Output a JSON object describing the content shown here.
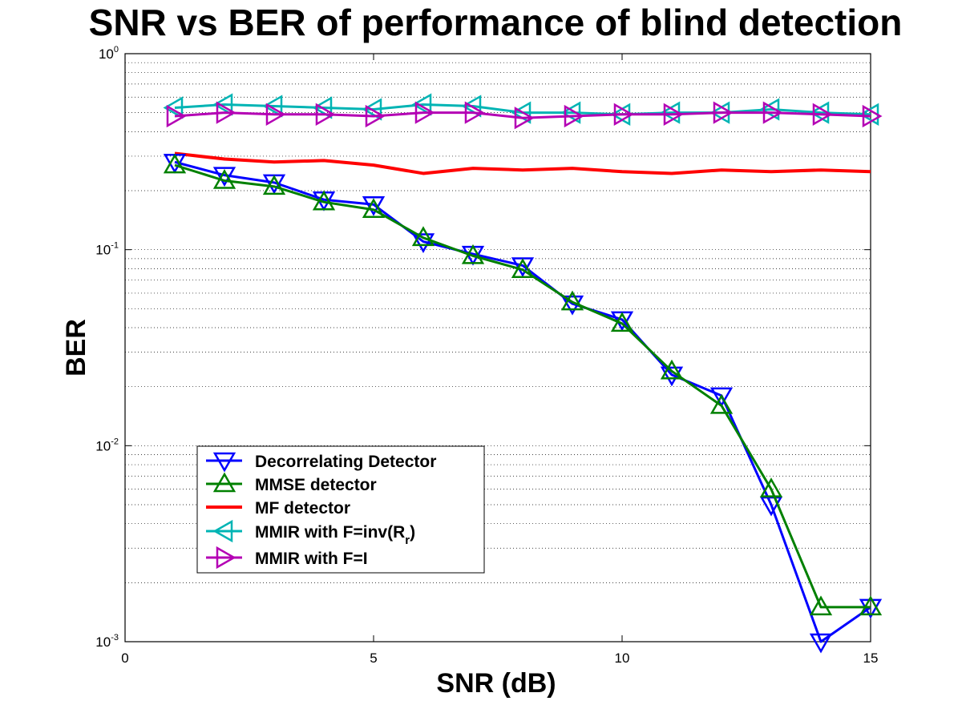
{
  "chart_data": {
    "type": "line",
    "title": "SNR vs BER of performance of blind detection",
    "xlabel": "SNR (dB)",
    "ylabel": "BER",
    "xlim": [
      0,
      15
    ],
    "ylim": [
      0.001,
      1
    ],
    "yscale": "log",
    "grid": "y-minor-dotted",
    "legend_position": "lower-left",
    "x_ticks": [
      0,
      5,
      10,
      15
    ],
    "y_ticks": [
      {
        "value": 1,
        "base": "10",
        "exp": "0"
      },
      {
        "value": 0.1,
        "base": "10",
        "exp": "-1"
      },
      {
        "value": 0.01,
        "base": "10",
        "exp": "-2"
      },
      {
        "value": 0.001,
        "base": "10",
        "exp": "-3"
      }
    ],
    "series": [
      {
        "name": "Decorrelating Detector",
        "color": "#0000ff",
        "marker": "triangle-down",
        "x": [
          1,
          2,
          3,
          4,
          5,
          6,
          7,
          8,
          9,
          10,
          11,
          12,
          13,
          14,
          15
        ],
        "y": [
          0.28,
          0.24,
          0.22,
          0.18,
          0.17,
          0.11,
          0.095,
          0.083,
          0.053,
          0.044,
          0.023,
          0.018,
          0.005,
          0.001,
          0.0015
        ]
      },
      {
        "name": "MMSE detector",
        "color": "#008000",
        "marker": "triangle-up",
        "x": [
          1,
          2,
          3,
          4,
          5,
          6,
          7,
          8,
          9,
          10,
          11,
          12,
          13,
          14,
          15
        ],
        "y": [
          0.27,
          0.225,
          0.21,
          0.175,
          0.16,
          0.115,
          0.093,
          0.079,
          0.054,
          0.042,
          0.024,
          0.016,
          0.006,
          0.0015,
          0.0015
        ]
      },
      {
        "name": "MF detector",
        "color": "#ff0000",
        "marker": "none",
        "x": [
          1,
          2,
          3,
          4,
          5,
          6,
          7,
          8,
          9,
          10,
          11,
          12,
          13,
          14,
          15
        ],
        "y": [
          0.31,
          0.29,
          0.28,
          0.285,
          0.27,
          0.245,
          0.26,
          0.255,
          0.26,
          0.25,
          0.245,
          0.255,
          0.25,
          0.255,
          0.25
        ]
      },
      {
        "name": "MMIR with F=inv(R_r)",
        "color": "#00b4b4",
        "marker": "triangle-left",
        "x": [
          1,
          2,
          3,
          4,
          5,
          6,
          7,
          8,
          9,
          10,
          11,
          12,
          13,
          14,
          15
        ],
        "y": [
          0.53,
          0.55,
          0.54,
          0.53,
          0.52,
          0.55,
          0.54,
          0.5,
          0.5,
          0.49,
          0.5,
          0.5,
          0.52,
          0.5,
          0.49
        ]
      },
      {
        "name": "MMIR with F=I",
        "color": "#b400b4",
        "marker": "triangle-right",
        "x": [
          1,
          2,
          3,
          4,
          5,
          6,
          7,
          8,
          9,
          10,
          11,
          12,
          13,
          14,
          15
        ],
        "y": [
          0.48,
          0.5,
          0.49,
          0.49,
          0.48,
          0.5,
          0.5,
          0.47,
          0.48,
          0.49,
          0.49,
          0.5,
          0.5,
          0.49,
          0.48
        ]
      }
    ],
    "legend": [
      {
        "text": "Decorrelating Detector",
        "sub": ""
      },
      {
        "text": "MMSE detector",
        "sub": ""
      },
      {
        "text": "MF detector",
        "sub": ""
      },
      {
        "text": "MMIR with F=inv(R",
        "sub": "r",
        "after": ")"
      },
      {
        "text": "MMIR with F=I",
        "sub": ""
      }
    ]
  }
}
